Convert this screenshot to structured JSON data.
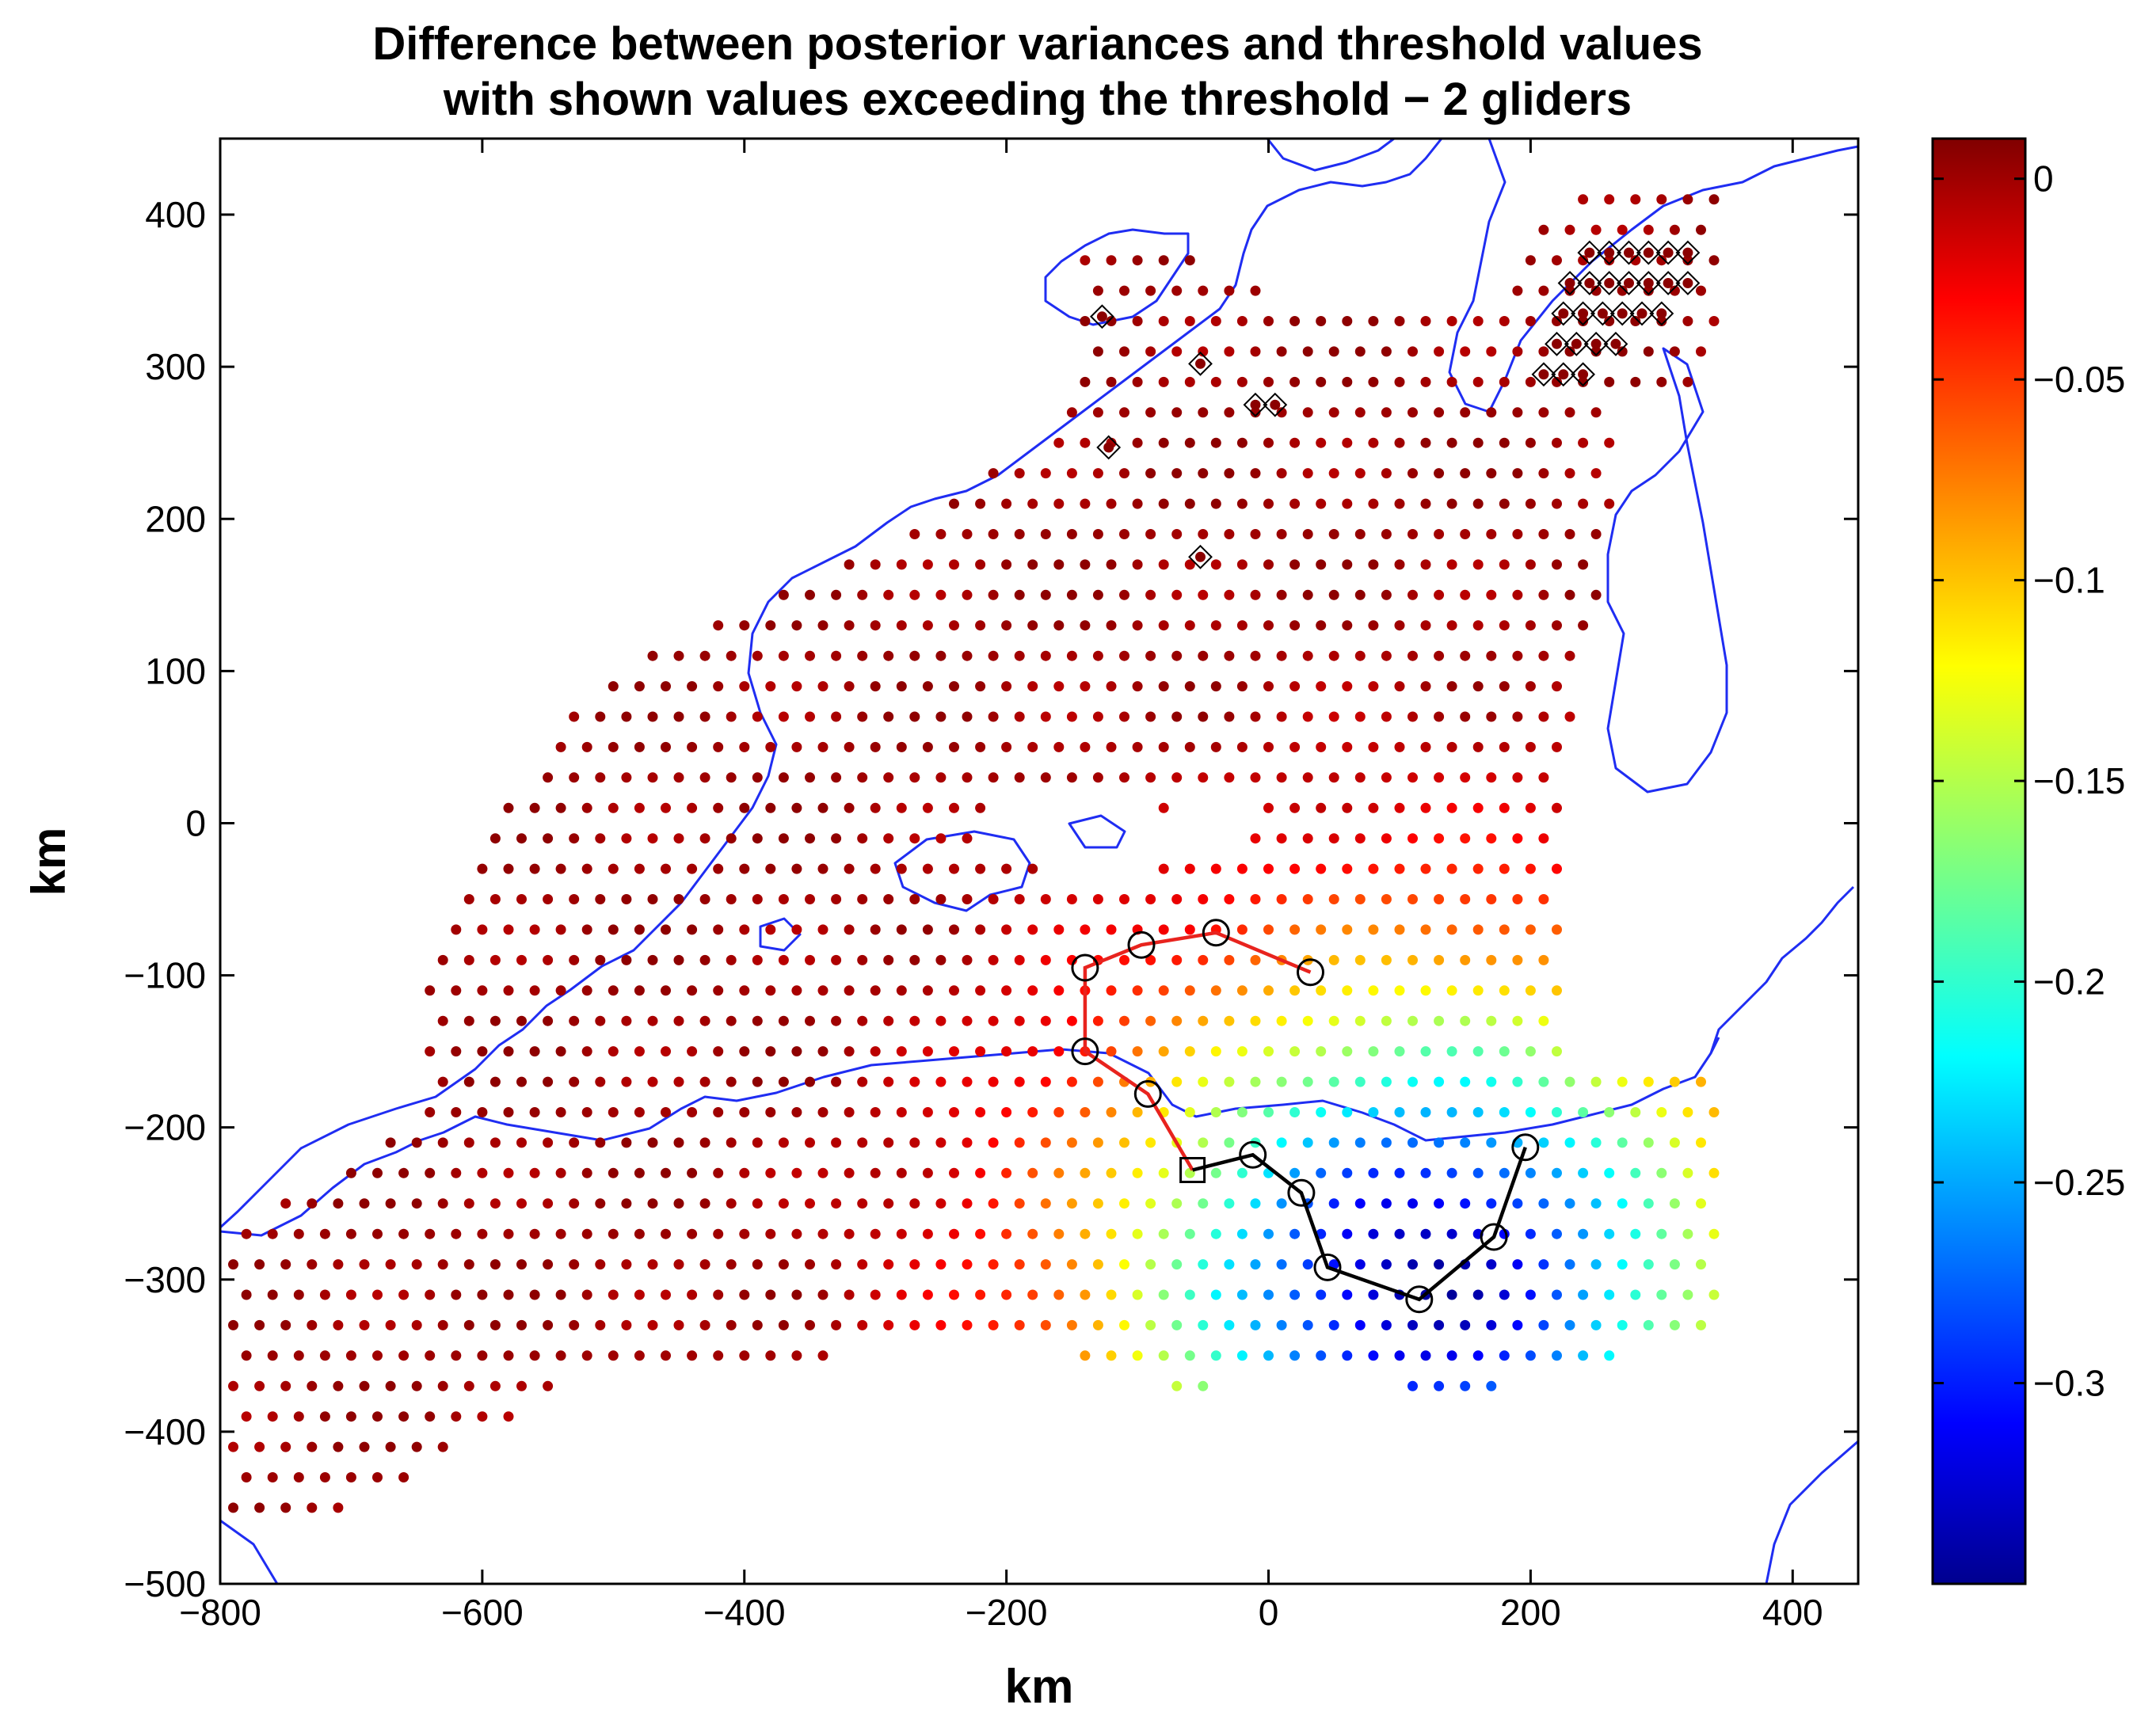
{
  "chart_data": [
    {
      "type": "scatter",
      "title": [
        "Difference between posterior variances and threshold values",
        "with shown values exceeding the threshold − 2 gliders"
      ],
      "xlabel": "km",
      "ylabel": "km",
      "xlim": [
        -800,
        450
      ],
      "ylim": [
        -500,
        450
      ],
      "xticks": [
        -800,
        -600,
        -400,
        -200,
        0,
        200,
        400
      ],
      "yticks": [
        -500,
        -400,
        -300,
        -200,
        -100,
        0,
        100,
        200,
        300,
        400
      ],
      "xtick_labels": [
        "−800",
        "−600",
        "−400",
        "−200",
        "0",
        "200",
        "400"
      ],
      "ytick_labels": [
        "−500",
        "−400",
        "−300",
        "−200",
        "−100",
        "0",
        "100",
        "200",
        "300",
        "400"
      ],
      "grid": false,
      "colormap": "jet",
      "colorbar": {
        "clim": [
          -0.35,
          0.01
        ],
        "ticks": [
          0,
          -0.05,
          -0.1,
          -0.15,
          -0.2,
          -0.25,
          -0.3
        ],
        "tick_labels": [
          "0",
          "−0.05",
          "−0.1",
          "−0.15",
          "−0.2",
          "−0.25",
          "−0.3"
        ]
      },
      "field": {
        "grid_spacing_km": [
          20,
          20
        ],
        "minimum": {
          "x": 120,
          "y": -300,
          "value": -0.33
        },
        "note_values": "values near 0 (dark red) far from the gliders, decreasing to about -0.33 (dark blue) near the glider tracks"
      },
      "exceeding_points": [
        [
          -127,
          333
        ],
        [
          -52,
          302
        ],
        [
          -10,
          275
        ],
        [
          5,
          275
        ],
        [
          -122,
          247
        ],
        [
          -52,
          175
        ],
        [
          245,
          375
        ],
        [
          260,
          375
        ],
        [
          275,
          375
        ],
        [
          290,
          375
        ],
        [
          305,
          375
        ],
        [
          320,
          375
        ],
        [
          230,
          355
        ],
        [
          245,
          355
        ],
        [
          260,
          355
        ],
        [
          275,
          355
        ],
        [
          290,
          355
        ],
        [
          305,
          355
        ],
        [
          320,
          355
        ],
        [
          225,
          335
        ],
        [
          240,
          335
        ],
        [
          255,
          335
        ],
        [
          270,
          335
        ],
        [
          285,
          335
        ],
        [
          300,
          335
        ],
        [
          220,
          315
        ],
        [
          235,
          315
        ],
        [
          250,
          315
        ],
        [
          265,
          315
        ],
        [
          210,
          295
        ],
        [
          225,
          295
        ],
        [
          240,
          295
        ]
      ],
      "gliders": [
        {
          "color": "#e8231e",
          "path": [
            [
              -58,
              -228
            ],
            [
              -92,
              -178
            ],
            [
              -140,
              -150
            ],
            [
              -140,
              -95
            ],
            [
              -97,
              -80
            ],
            [
              -40,
              -72
            ],
            [
              32,
              -98
            ]
          ],
          "waypoints": [
            [
              -92,
              -178
            ],
            [
              -140,
              -150
            ],
            [
              -140,
              -95
            ],
            [
              -97,
              -80
            ],
            [
              -40,
              -72
            ],
            [
              32,
              -98
            ]
          ]
        },
        {
          "color": "#000000",
          "path": [
            [
              -58,
              -228
            ],
            [
              -12,
              -218
            ],
            [
              25,
              -243
            ],
            [
              45,
              -292
            ],
            [
              115,
              -313
            ],
            [
              172,
              -272
            ],
            [
              196,
              -213
            ]
          ],
          "waypoints": [
            [
              -12,
              -218
            ],
            [
              25,
              -243
            ],
            [
              45,
              -292
            ],
            [
              115,
              -313
            ],
            [
              172,
              -272
            ],
            [
              196,
              -213
            ]
          ]
        }
      ],
      "start_marker": [
        -58,
        -228
      ],
      "coastline_color": "#1f2df2",
      "marker_colors": {
        "track_start": "#000000",
        "waypoint": "#000000",
        "exceeding": "#000000"
      }
    }
  ]
}
